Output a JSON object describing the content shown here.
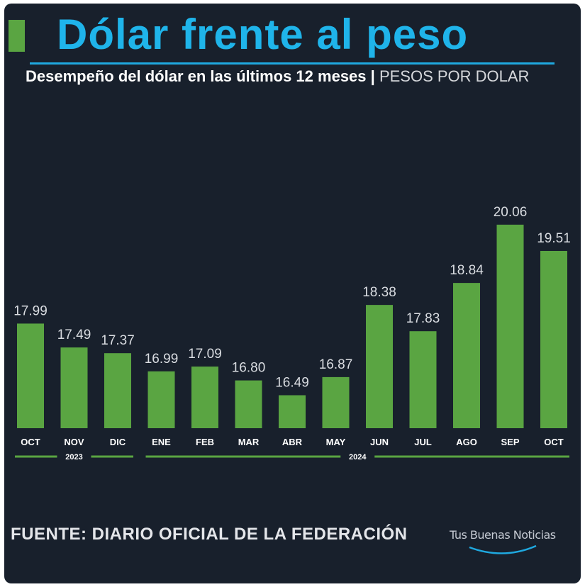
{
  "header": {
    "title": "Dólar frente al peso",
    "subtitle_main": "Desempeño del dólar en las últimos 12 meses",
    "subtitle_sep": "|",
    "subtitle_unit": "PESOS POR DOLAR"
  },
  "footer": {
    "source": "FUENTE: DIARIO OFICIAL DE LA FEDERACIÓN",
    "brand": "Tus Buenas Noticias"
  },
  "colors": {
    "background": "#18202c",
    "bar": "#5aa542",
    "title": "#1fb4ea",
    "rule": "#1fa9e0",
    "text": "#ffffff",
    "value_label": "#d9dce1"
  },
  "chart_data": {
    "type": "bar",
    "categories": [
      "OCT",
      "NOV",
      "DIC",
      "ENE",
      "FEB",
      "MAR",
      "ABR",
      "MAY",
      "JUN",
      "JUL",
      "AGO",
      "SEP",
      "OCT"
    ],
    "values": [
      17.99,
      17.49,
      17.37,
      16.99,
      17.09,
      16.8,
      16.49,
      16.87,
      18.38,
      17.83,
      18.84,
      20.06,
      19.51
    ],
    "value_labels": [
      "17.99",
      "17.49",
      "17.37",
      "16.99",
      "17.09",
      "16.80",
      "16.49",
      "16.87",
      "18.38",
      "17.83",
      "18.84",
      "20.06",
      "19.51"
    ],
    "year_groups": [
      {
        "label": "2023",
        "first": 0,
        "last": 2
      },
      {
        "label": "2024",
        "first": 3,
        "last": 12
      }
    ],
    "ylim": [
      15.8,
      20.4
    ],
    "grid": false,
    "legend": "none"
  }
}
